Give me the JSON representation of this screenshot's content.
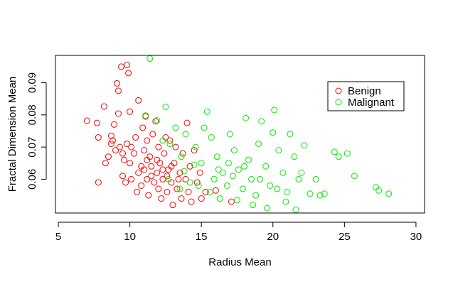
{
  "chart_data": {
    "type": "scatter",
    "title": "",
    "xlabel": "Radius Mean",
    "ylabel": "Fractal Dimension Mean",
    "xlim": [
      4.8,
      30.6
    ],
    "ylim": [
      0.0495,
      0.0985
    ],
    "xticks": [
      5,
      10,
      15,
      20,
      25,
      30
    ],
    "yticks": [
      0.06,
      0.07,
      0.08,
      0.09
    ],
    "grid": false,
    "legend_position": "top-right",
    "series": [
      {
        "name": "Benign",
        "color": "#ff0000",
        "points": [
          [
            7.0,
            0.0782
          ],
          [
            7.7,
            0.0775
          ],
          [
            7.8,
            0.073
          ],
          [
            7.8,
            0.059
          ],
          [
            8.2,
            0.0826
          ],
          [
            8.3,
            0.065
          ],
          [
            8.5,
            0.067
          ],
          [
            8.7,
            0.071
          ],
          [
            8.7,
            0.0735
          ],
          [
            8.8,
            0.072
          ],
          [
            8.9,
            0.077
          ],
          [
            9.0,
            0.069
          ],
          [
            9.1,
            0.0898
          ],
          [
            9.2,
            0.0875
          ],
          [
            9.2,
            0.0804
          ],
          [
            9.3,
            0.07
          ],
          [
            9.4,
            0.095
          ],
          [
            9.5,
            0.068
          ],
          [
            9.5,
            0.061
          ],
          [
            9.6,
            0.066
          ],
          [
            9.7,
            0.059
          ],
          [
            9.8,
            0.0955
          ],
          [
            9.8,
            0.071
          ],
          [
            9.9,
            0.093
          ],
          [
            10.0,
            0.081
          ],
          [
            10.0,
            0.065
          ],
          [
            10.1,
            0.07
          ],
          [
            10.1,
            0.06
          ],
          [
            10.3,
            0.068
          ],
          [
            10.4,
            0.073
          ],
          [
            10.5,
            0.056
          ],
          [
            10.6,
            0.0845
          ],
          [
            10.6,
            0.062
          ],
          [
            10.8,
            0.058
          ],
          [
            10.9,
            0.076
          ],
          [
            11.0,
            0.069
          ],
          [
            11.0,
            0.063
          ],
          [
            11.1,
            0.0795
          ],
          [
            11.2,
            0.072
          ],
          [
            11.2,
            0.06
          ],
          [
            11.3,
            0.055
          ],
          [
            11.4,
            0.067
          ],
          [
            11.5,
            0.064
          ],
          [
            11.6,
            0.074
          ],
          [
            11.7,
            0.059
          ],
          [
            11.8,
            0.078
          ],
          [
            11.9,
            0.062
          ],
          [
            12.0,
            0.057
          ],
          [
            12.0,
            0.07
          ],
          [
            12.1,
            0.065
          ],
          [
            12.2,
            0.054
          ],
          [
            12.3,
            0.06
          ],
          [
            12.4,
            0.068
          ],
          [
            12.5,
            0.073
          ],
          [
            12.6,
            0.056
          ],
          [
            12.7,
            0.063
          ],
          [
            12.8,
            0.072
          ],
          [
            12.9,
            0.059
          ],
          [
            13.0,
            0.052
          ],
          [
            13.1,
            0.065
          ],
          [
            13.2,
            0.07
          ],
          [
            13.3,
            0.057
          ],
          [
            13.5,
            0.062
          ],
          [
            13.6,
            0.054
          ],
          [
            13.7,
            0.068
          ],
          [
            13.9,
            0.06
          ],
          [
            14.0,
            0.0775
          ],
          [
            14.1,
            0.056
          ],
          [
            14.2,
            0.064
          ],
          [
            14.3,
            0.053
          ],
          [
            14.5,
            0.069
          ],
          [
            14.7,
            0.059
          ],
          [
            14.9,
            0.062
          ],
          [
            15.0,
            0.054
          ],
          [
            15.3,
            0.056
          ],
          [
            16.0,
            0.0565
          ],
          [
            17.1,
            0.053
          ],
          [
            10.8,
            0.064
          ],
          [
            11.5,
            0.061
          ],
          [
            12.3,
            0.063
          ],
          [
            11.9,
            0.066
          ],
          [
            12.6,
            0.061
          ],
          [
            11.2,
            0.066
          ],
          [
            12.9,
            0.064
          ],
          [
            13.4,
            0.06
          ]
        ]
      },
      {
        "name": "Malignant",
        "color": "#00ee00",
        "points": [
          [
            11.4,
            0.0975
          ],
          [
            11.1,
            0.0798
          ],
          [
            12.5,
            0.0825
          ],
          [
            11.9,
            0.0783
          ],
          [
            12.3,
            0.072
          ],
          [
            12.8,
            0.071
          ],
          [
            13.2,
            0.076
          ],
          [
            13.6,
            0.067
          ],
          [
            13.9,
            0.074
          ],
          [
            14.2,
            0.059
          ],
          [
            14.6,
            0.07
          ],
          [
            15.0,
            0.065
          ],
          [
            15.2,
            0.076
          ],
          [
            15.4,
            0.081
          ],
          [
            15.7,
            0.073
          ],
          [
            15.9,
            0.06
          ],
          [
            16.1,
            0.067
          ],
          [
            16.3,
            0.054
          ],
          [
            16.5,
            0.062
          ],
          [
            16.8,
            0.058
          ],
          [
            17.0,
            0.074
          ],
          [
            17.3,
            0.069
          ],
          [
            17.6,
            0.063
          ],
          [
            17.9,
            0.057
          ],
          [
            18.1,
            0.079
          ],
          [
            18.3,
            0.066
          ],
          [
            18.5,
            0.06
          ],
          [
            18.8,
            0.055
          ],
          [
            19.0,
            0.071
          ],
          [
            19.2,
            0.078
          ],
          [
            19.5,
            0.064
          ],
          [
            19.8,
            0.058
          ],
          [
            20.0,
            0.0745
          ],
          [
            20.1,
            0.0815
          ],
          [
            20.4,
            0.069
          ],
          [
            20.7,
            0.062
          ],
          [
            21.0,
            0.056
          ],
          [
            21.2,
            0.074
          ],
          [
            21.5,
            0.067
          ],
          [
            21.8,
            0.06
          ],
          [
            22.2,
            0.0705
          ],
          [
            22.0,
            0.062
          ],
          [
            22.6,
            0.0555
          ],
          [
            23.0,
            0.06
          ],
          [
            23.3,
            0.055
          ],
          [
            23.6,
            0.0555
          ],
          [
            24.3,
            0.0685
          ],
          [
            24.6,
            0.067
          ],
          [
            25.2,
            0.068
          ],
          [
            25.7,
            0.061
          ],
          [
            27.2,
            0.0575
          ],
          [
            27.4,
            0.0565
          ],
          [
            28.1,
            0.0555
          ],
          [
            16.2,
            0.063
          ],
          [
            17.2,
            0.061
          ],
          [
            18.0,
            0.064
          ],
          [
            19.1,
            0.06
          ],
          [
            20.3,
            0.057
          ],
          [
            18.6,
            0.052
          ],
          [
            19.6,
            0.051
          ],
          [
            20.9,
            0.053
          ],
          [
            21.6,
            0.0505
          ],
          [
            17.5,
            0.0535
          ],
          [
            16.9,
            0.065
          ],
          [
            15.6,
            0.056
          ],
          [
            13.5,
            0.057
          ],
          [
            14.8,
            0.058
          ],
          [
            12.7,
            0.06
          ],
          [
            13.8,
            0.0625
          ],
          [
            14.5,
            0.0645
          ]
        ]
      }
    ]
  }
}
